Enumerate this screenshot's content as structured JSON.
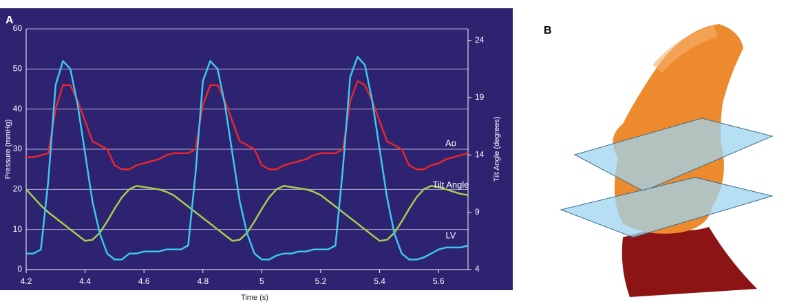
{
  "panel_labels": [
    "A",
    "B"
  ],
  "chart_data": {
    "type": "line",
    "xlabel": "Time (s)",
    "ylabel": "Pressure (mmHg)",
    "y2label": "Tilt Angle (degrees)",
    "x": [
      4.2,
      4.225,
      4.25,
      4.275,
      4.3,
      4.325,
      4.35,
      4.375,
      4.4,
      4.425,
      4.45,
      4.475,
      4.5,
      4.525,
      4.55,
      4.575,
      4.6,
      4.625,
      4.65,
      4.675,
      4.7,
      4.725,
      4.75,
      4.775,
      4.8,
      4.825,
      4.85,
      4.875,
      4.9,
      4.925,
      4.95,
      4.975,
      5,
      5.025,
      5.05,
      5.075,
      5.1,
      5.125,
      5.15,
      5.175,
      5.2,
      5.225,
      5.25,
      5.275,
      5.3,
      5.325,
      5.35,
      5.375,
      5.4,
      5.425,
      5.45,
      5.475,
      5.5,
      5.525,
      5.55,
      5.575,
      5.6,
      5.625,
      5.65,
      5.675,
      5.7
    ],
    "series": [
      {
        "name": "Ao",
        "color": "#e8262b",
        "values": [
          28,
          28,
          28.5,
          29,
          40,
          46,
          46,
          42,
          37,
          32,
          31,
          30,
          26,
          25,
          25,
          26,
          26.5,
          27,
          27.5,
          28.5,
          29,
          29,
          29,
          30,
          41,
          46,
          46,
          42,
          37,
          32,
          31,
          30,
          26,
          25,
          25,
          26,
          26.5,
          27,
          27.5,
          28.5,
          29,
          29,
          29,
          30,
          42,
          47,
          46,
          42,
          37,
          32,
          31,
          30,
          26,
          25,
          25,
          26,
          26.5,
          27.5,
          28,
          28.5,
          29
        ]
      },
      {
        "name": "Tilt Angle",
        "color": "#a6d04a",
        "axis": "y2",
        "values": [
          11,
          10.3,
          9.6,
          9,
          8.5,
          8,
          7.5,
          7,
          6.5,
          6.6,
          7.2,
          8.2,
          9.3,
          10.3,
          11,
          11.3,
          11.2,
          11.1,
          11,
          10.8,
          10.5,
          10,
          9.5,
          9,
          8.5,
          8,
          7.5,
          7,
          6.5,
          6.6,
          7.2,
          8.2,
          9.3,
          10.3,
          11,
          11.3,
          11.2,
          11.1,
          11,
          10.8,
          10.5,
          10,
          9.5,
          9,
          8.5,
          8,
          7.5,
          7,
          6.5,
          6.6,
          7.2,
          8.2,
          9.3,
          10.3,
          11,
          11.3,
          11.2,
          11,
          10.8,
          10.6,
          10.5
        ]
      },
      {
        "name": "LV",
        "color": "#3cc8f0",
        "values": [
          4,
          4,
          5,
          22,
          46,
          52,
          50,
          41,
          29,
          17,
          9,
          4,
          2.5,
          2.5,
          4,
          4,
          4.5,
          4.5,
          4.5,
          5,
          5,
          5,
          6,
          24,
          47,
          52,
          50,
          41,
          29,
          17,
          9,
          4,
          2.5,
          2.5,
          3.5,
          4,
          4,
          4.5,
          4.5,
          5,
          5,
          5,
          6,
          25,
          48,
          53,
          51,
          42,
          30,
          18,
          9,
          4,
          2.5,
          2.5,
          3,
          4,
          5,
          5.5,
          5.5,
          5.5,
          6
        ]
      }
    ],
    "xlim": [
      4.2,
      5.7
    ],
    "xticks": [
      4.2,
      4.4,
      4.6,
      4.8,
      5,
      5.2,
      5.4,
      5.6
    ],
    "ylim": [
      0,
      60
    ],
    "yticks": [
      0,
      10,
      20,
      30,
      40,
      50,
      60
    ],
    "y2lim": [
      4,
      25
    ],
    "y2ticks": [
      4,
      9,
      14,
      19,
      24
    ],
    "grid": true
  }
}
